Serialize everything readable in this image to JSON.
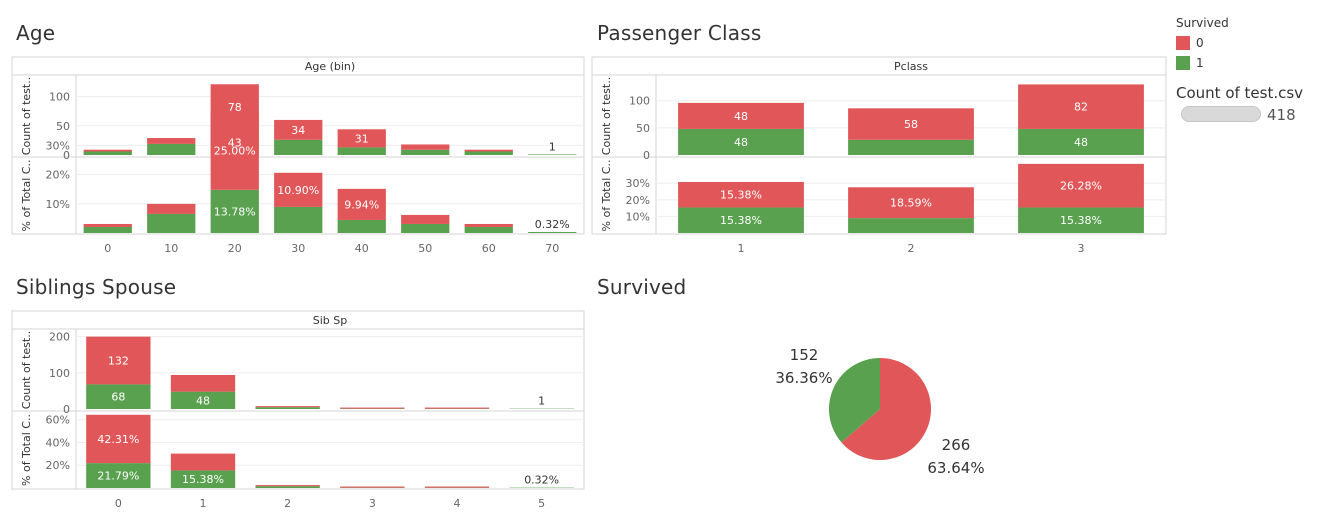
{
  "titles": {
    "age": "Age",
    "pclass": "Passenger Class",
    "sibsp": "Siblings Spouse",
    "survived": "Survived"
  },
  "legend": {
    "title": "Survived",
    "items": [
      {
        "label": "0",
        "color": "#e15759"
      },
      {
        "label": "1",
        "color": "#59a14f"
      }
    ]
  },
  "count_legend": {
    "title": "Count of test.csv",
    "value": "418"
  },
  "colors": {
    "died": "#e15759",
    "survived": "#59a14f"
  },
  "chart_data": [
    {
      "id": "age",
      "type": "bar",
      "stacked": true,
      "header": "Age (bin)",
      "categories": [
        "0",
        "10",
        "20",
        "30",
        "40",
        "50",
        "60",
        "70"
      ],
      "count_axis": {
        "label": "Count of test..",
        "ticks": [
          "100",
          "50",
          "0"
        ],
        "ylim": [
          0,
          130
        ]
      },
      "pct_axis": {
        "label": "% of Total C..",
        "ticks": [
          "30%",
          "20%",
          "10%"
        ],
        "ylim": [
          0,
          25
        ]
      },
      "series": [
        {
          "name": "0",
          "counts": [
            3,
            10,
            78,
            34,
            31,
            9,
            3,
            0
          ],
          "pct_labels": [
            "",
            "",
            "25.00%",
            "10.90%",
            "9.94%",
            "",
            "",
            ""
          ],
          "count_labels": [
            "",
            "",
            "78",
            "34",
            "31",
            "",
            "",
            ""
          ]
        },
        {
          "name": "1",
          "counts": [
            6,
            19,
            43,
            26,
            13,
            9,
            6,
            1
          ],
          "pct_labels": [
            "",
            "",
            "13.78%",
            "",
            "",
            "",
            "",
            "0.32%"
          ],
          "count_labels": [
            "",
            "",
            "43",
            "",
            "",
            "",
            "",
            "1"
          ]
        }
      ]
    },
    {
      "id": "pclass",
      "type": "bar",
      "stacked": true,
      "header": "Pclass",
      "categories": [
        "1",
        "2",
        "3"
      ],
      "count_axis": {
        "label": "Count of test..",
        "ticks": [
          "100",
          "50",
          "0"
        ],
        "ylim": [
          0,
          140
        ]
      },
      "pct_axis": {
        "label": "% of Total C..",
        "ticks": [
          "30%",
          "20%",
          "10%"
        ],
        "ylim": [
          0,
          44
        ]
      },
      "series": [
        {
          "name": "0",
          "counts": [
            48,
            58,
            82
          ],
          "pct_labels": [
            "15.38%",
            "18.59%",
            "26.28%"
          ],
          "count_labels": [
            "48",
            "58",
            "82"
          ]
        },
        {
          "name": "1",
          "counts": [
            48,
            28,
            48
          ],
          "pct_labels": [
            "15.38%",
            "",
            "15.38%"
          ],
          "count_labels": [
            "48",
            "",
            "48"
          ]
        }
      ]
    },
    {
      "id": "sibsp",
      "type": "bar",
      "stacked": true,
      "header": "Sib Sp",
      "categories": [
        "0",
        "1",
        "2",
        "3",
        "4",
        "5"
      ],
      "count_axis": {
        "label": "Count of test..",
        "ticks": [
          "200",
          "100",
          "0"
        ],
        "ylim": [
          0,
          210
        ]
      },
      "pct_axis": {
        "label": "% of Total C..",
        "ticks": [
          "60%",
          "40%",
          "20%"
        ],
        "ylim": [
          0,
          65
        ]
      },
      "series": [
        {
          "name": "0",
          "counts": [
            132,
            46,
            3,
            3,
            3,
            0
          ],
          "pct_labels": [
            "42.31%",
            "",
            "",
            "",
            "",
            ""
          ],
          "count_labels": [
            "132",
            "",
            "",
            "",
            "",
            ""
          ]
        },
        {
          "name": "1",
          "counts": [
            68,
            48,
            5,
            1,
            1,
            1
          ],
          "pct_labels": [
            "21.79%",
            "15.38%",
            "",
            "",
            "",
            "0.32%"
          ],
          "count_labels": [
            "68",
            "48",
            "",
            "",
            "",
            "1"
          ]
        }
      ]
    },
    {
      "id": "survived",
      "type": "pie",
      "slices": [
        {
          "name": "0",
          "value": 266,
          "count_label": "266",
          "pct_label": "63.64%",
          "color": "#e15759"
        },
        {
          "name": "1",
          "value": 152,
          "count_label": "152",
          "pct_label": "36.36%",
          "color": "#59a14f"
        }
      ]
    }
  ]
}
